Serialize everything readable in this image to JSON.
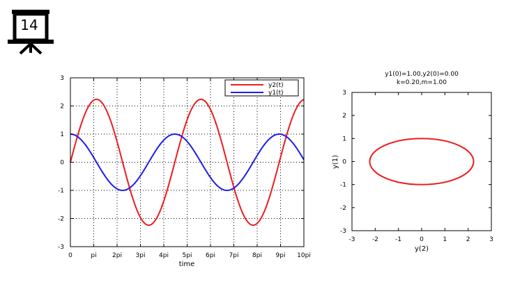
{
  "slide": {
    "number": "14",
    "icon": "presentation-board-icon"
  },
  "chart_data": [
    {
      "type": "line",
      "title": "",
      "xlabel": "time",
      "ylabel": "",
      "xlim": [
        0,
        10
      ],
      "ylim": [
        -3,
        3
      ],
      "x_unit": "pi",
      "x_tick_labels": [
        "0",
        "pi",
        "2pi",
        "3pi",
        "4pi",
        "5pi",
        "6pi",
        "7pi",
        "8pi",
        "9pi",
        "10pi"
      ],
      "y_tick_labels": [
        "-3",
        "-2",
        "-1",
        "0",
        "1",
        "2",
        "3"
      ],
      "grid": true,
      "legend_position": "top-right",
      "series": [
        {
          "name": "y2(t)",
          "color": "#ee1c1c",
          "amplitude": 2.236,
          "omega_per_pi": 0.4472,
          "phase": "sin",
          "sample_points": [
            [
              0,
              0
            ],
            [
              1.12,
              2.236
            ],
            [
              3.35,
              -2.236
            ],
            [
              5.59,
              2.236
            ],
            [
              7.83,
              -2.236
            ],
            [
              10,
              2.23
            ]
          ]
        },
        {
          "name": "y1(t)",
          "color": "#1c1cee",
          "amplitude": 1.0,
          "omega_per_pi": 0.4472,
          "phase": "cos",
          "sample_points": [
            [
              0,
              1
            ],
            [
              2.24,
              -1
            ],
            [
              4.47,
              1
            ],
            [
              6.71,
              -1
            ],
            [
              8.94,
              1
            ],
            [
              10,
              0.1
            ]
          ]
        }
      ]
    },
    {
      "type": "line",
      "title": "y1(0)=1.00,y2(0)=0.00",
      "subtitle": "k=0.20,m=1.00",
      "xlabel": "y(2)",
      "ylabel": "y(1)",
      "xlim": [
        -3,
        3
      ],
      "ylim": [
        -3,
        3
      ],
      "x_tick_labels": [
        "-3",
        "-2",
        "-1",
        "0",
        "1",
        "2",
        "3"
      ],
      "y_tick_labels": [
        "-3",
        "-2",
        "-1",
        "0",
        "1",
        "2",
        "3"
      ],
      "grid": false,
      "series": [
        {
          "name": "",
          "color": "#ee1c1c",
          "shape": "ellipse",
          "x_semi_axis": 2.236,
          "y_semi_axis": 1.0,
          "center": [
            0,
            0
          ]
        }
      ]
    }
  ]
}
